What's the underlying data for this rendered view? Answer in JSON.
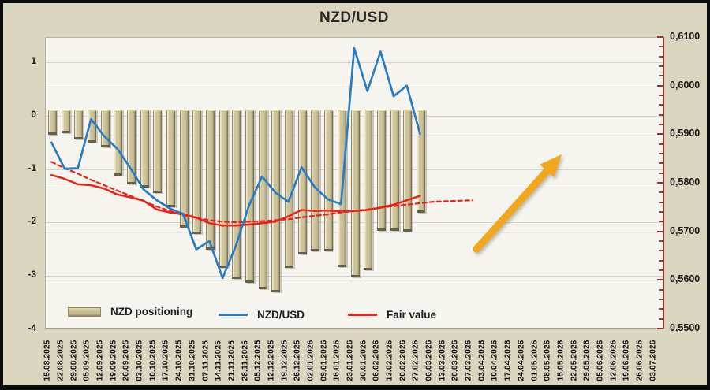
{
  "window": {
    "title": "NZD/USD"
  },
  "chart_data": {
    "type": "combo",
    "title": "NZD/USD",
    "categories": [
      "15.08.2025",
      "22.08.2025",
      "29.08.2025",
      "05.09.2025",
      "12.09.2025",
      "19.09.2025",
      "26.09.2025",
      "03.10.2025",
      "10.10.2025",
      "17.10.2025",
      "24.10.2025",
      "31.10.2025",
      "07.11.2025",
      "14.11.2025",
      "21.11.2025",
      "28.11.2025",
      "05.12.2025",
      "12.12.2025",
      "19.12.2025",
      "26.12.2025",
      "02.01.2026",
      "09.01.2026",
      "16.01.2026",
      "23.01.2026",
      "30.01.2026",
      "06.02.2026",
      "13.02.2026",
      "20.02.2026",
      "27.02.2026",
      "06.03.2026",
      "13.03.2026",
      "20.03.2026",
      "27.03.2026",
      "03.04.2026",
      "10.04.2026",
      "17.04.2026",
      "24.04.2026",
      "01.05.2026",
      "08.05.2026",
      "15.05.2026",
      "22.05.2026",
      "29.05.2026",
      "05.06.2026",
      "12.06.2026",
      "19.06.2026",
      "26.06.2026",
      "03.07.2026"
    ],
    "left_axis": {
      "tick_labels": [
        "1",
        "0",
        "-1",
        "-2",
        "-3",
        "-4"
      ],
      "tick_values": [
        1,
        0,
        -1,
        -2,
        -3,
        -4
      ],
      "min": -4,
      "max": 1.457,
      "grid": true
    },
    "right_axis": {
      "tick_labels": [
        "0,6100",
        "0,6000",
        "0,5900",
        "0,5800",
        "0,5700",
        "0,5600",
        "0,5500"
      ],
      "tick_values": [
        0.61,
        0.6,
        0.59,
        0.58,
        0.57,
        0.56,
        0.55
      ],
      "min": 0.55,
      "max": 0.61,
      "minor_ticks_between_majors": 4,
      "axis_color": "#8a3a2e"
    },
    "series": [
      {
        "name": "NZD positioning",
        "type": "bar",
        "axis": "left",
        "color": "#cbc29a",
        "values": [
          -0.35,
          -0.33,
          -0.45,
          -0.5,
          -0.6,
          -1.13,
          -1.28,
          -1.35,
          -1.45,
          -1.72,
          -2.1,
          -2.22,
          -2.51,
          -2.85,
          -3.05,
          -3.13,
          -3.25,
          -3.3,
          -2.85,
          -2.6,
          -2.54,
          -2.54,
          -2.83,
          -3.02,
          -2.9,
          -2.15,
          -2.15,
          -2.17,
          -1.81
        ]
      },
      {
        "name": "NZD/USD",
        "type": "line",
        "axis": "right",
        "color": "#2b7bc2",
        "values": [
          0.5883,
          0.5829,
          0.583,
          0.5931,
          0.5896,
          0.587,
          0.583,
          0.5786,
          0.5764,
          0.5747,
          0.5736,
          0.5663,
          0.568,
          0.5604,
          0.567,
          0.5753,
          0.5813,
          0.578,
          0.5761,
          0.5832,
          0.5791,
          0.5766,
          0.5756,
          0.6077,
          0.5989,
          0.607,
          0.5978,
          0.6,
          0.5901
        ]
      },
      {
        "name": "Fair value",
        "type": "line",
        "axis": "right",
        "color": "#ea2318",
        "values": [
          0.5816,
          0.5808,
          0.5797,
          0.5795,
          0.5788,
          0.5776,
          0.577,
          0.5763,
          0.5745,
          0.5739,
          0.5736,
          0.5728,
          0.5717,
          0.5712,
          0.5712,
          0.5714,
          0.5717,
          0.572,
          0.5731,
          0.5744,
          0.5742,
          0.5743,
          0.5741,
          0.5742,
          0.5744,
          0.5749,
          0.5755,
          0.5764,
          0.5773
        ]
      },
      {
        "name": "Fair value projection",
        "type": "line",
        "axis": "right",
        "style": "dashed",
        "color": "#ea2318",
        "values": [
          0.5843,
          0.583,
          0.5819,
          0.5806,
          0.5795,
          0.5784,
          0.5773,
          0.5762,
          0.5751,
          0.5742,
          0.5733,
          0.5728,
          0.5723,
          0.572,
          0.5719,
          0.572,
          0.5721,
          0.5723,
          0.5725,
          0.5729,
          0.5732,
          0.5735,
          0.5739,
          0.5742,
          0.5745,
          0.5749,
          0.5752,
          0.5755,
          0.5758,
          0.5761,
          0.5762,
          0.5763,
          0.5764
        ]
      }
    ],
    "annotations": {
      "trend_arrow": {
        "description": "large orange arrow pointing up and to the right",
        "color": "#F2A71B"
      }
    },
    "legend": {
      "position": "bottom-inside",
      "entries": [
        "NZD positioning",
        "NZD/USD",
        "Fair value"
      ]
    }
  }
}
